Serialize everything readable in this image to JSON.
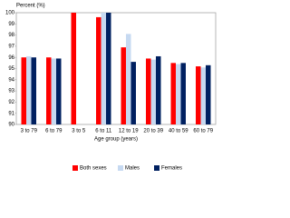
{
  "chart_data": {
    "type": "bar",
    "y_label": "Percent (%)",
    "x_label": "Age group (years)",
    "categories": [
      "3 to 79",
      "6 to 79",
      "3 to 5",
      "6 to 11",
      "12 to 19",
      "20 to 39",
      "40 to 59",
      "60 to 79"
    ],
    "series": [
      {
        "name": "Both sexes",
        "color": "#ff0000",
        "values": [
          96.0,
          96.0,
          100,
          99.6,
          96.9,
          95.9,
          95.5,
          95.2
        ]
      },
      {
        "name": "Males",
        "color": "#c6d9f1",
        "values": [
          96.1,
          95.9,
          null,
          100,
          98.1,
          95.8,
          95.4,
          95.1
        ]
      },
      {
        "name": "Females",
        "color": "#002060",
        "values": [
          96.0,
          95.9,
          null,
          100,
          95.6,
          96.1,
          95.5,
          95.3
        ]
      }
    ],
    "ylim": [
      90,
      100
    ],
    "yticks": [
      90,
      91,
      92,
      93,
      94,
      95,
      96,
      97,
      98,
      99,
      100
    ],
    "grid": false,
    "legend": "bottom"
  }
}
